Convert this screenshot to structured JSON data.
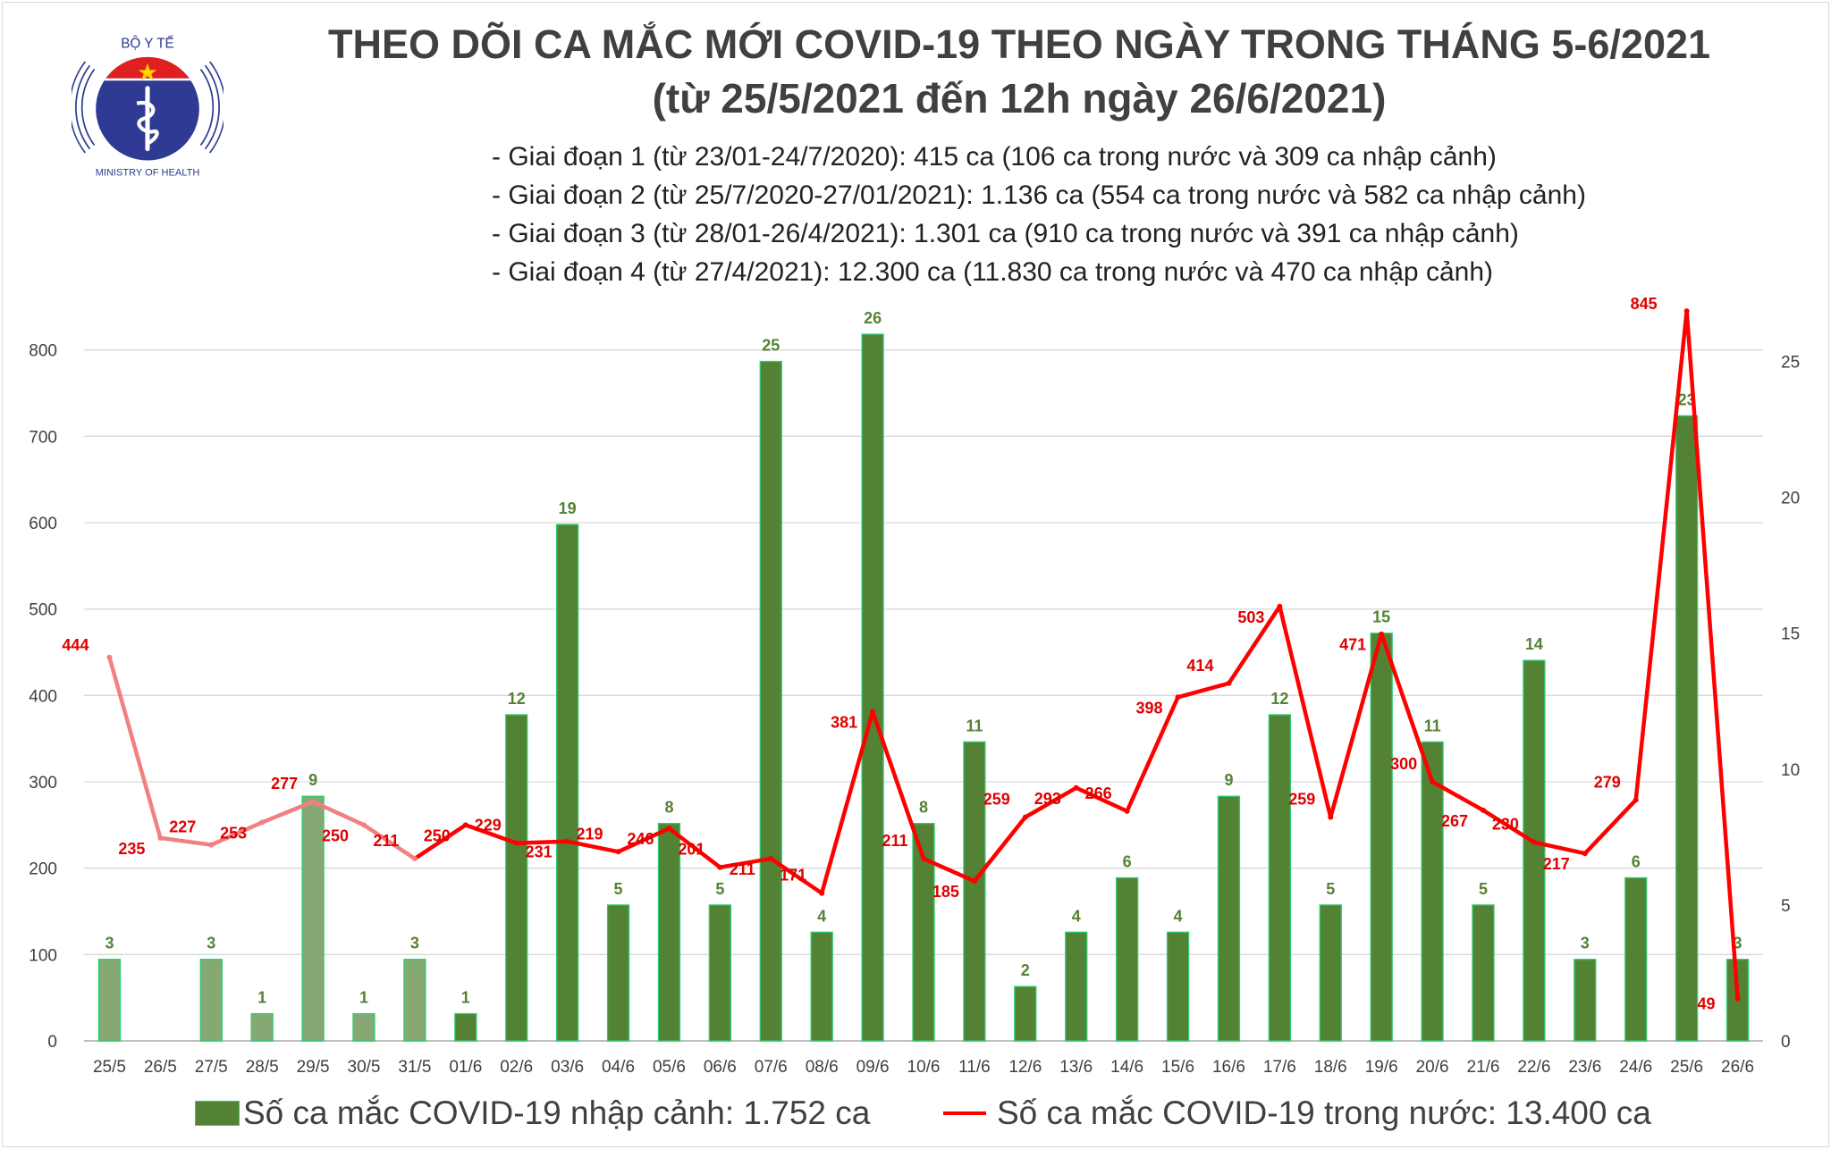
{
  "header": {
    "title": "THEO DÕI CA MẮC MỚI COVID-19 THEO NGÀY TRONG THÁNG 5-6/2021",
    "subtitle": "(từ 25/5/2021 đến 12h ngày 26/6/2021)",
    "phases": [
      "- Giai đoạn 1 (từ 23/01-24/7/2020): 415 ca (106 ca trong nước và 309 ca nhập cảnh)",
      "- Giai đoạn 2 (từ 25/7/2020-27/01/2021): 1.136 ca (554 ca trong nước và 582 ca nhập cảnh)",
      "- Giai đoạn 3 (từ 28/01-26/4/2021): 1.301 ca (910 ca trong nước và 391 ca nhập cảnh)",
      "- Giai đoạn 4 (từ 27/4/2021): 12.300 ca (11.830 ca trong nước và 470 ca nhập cảnh)"
    ]
  },
  "logo": {
    "top_text": "BỘ Y TẾ",
    "bottom_text": "MINISTRY OF HEALTH"
  },
  "legend": {
    "bar": "Số ca mắc COVID-19 nhập cảnh: 1.752 ca",
    "line": "Số ca mắc COVID-19 trong nước: 13.400 ca"
  },
  "chart_data": {
    "type": "bar+line",
    "categories": [
      "25/5",
      "26/5",
      "27/5",
      "28/5",
      "29/5",
      "30/5",
      "31/5",
      "01/6",
      "02/6",
      "03/6",
      "04/6",
      "05/6",
      "06/6",
      "07/6",
      "08/6",
      "09/6",
      "10/6",
      "11/6",
      "12/6",
      "13/6",
      "14/6",
      "15/6",
      "16/6",
      "17/6",
      "18/6",
      "19/6",
      "20/6",
      "21/6",
      "22/6",
      "23/6",
      "24/6",
      "25/6",
      "26/6"
    ],
    "series": [
      {
        "name": "Số ca mắc COVID-19 nhập cảnh",
        "type": "bar",
        "axis": "right",
        "values": [
          3,
          0,
          3,
          1,
          9,
          1,
          3,
          1,
          12,
          19,
          5,
          8,
          5,
          25,
          4,
          26,
          8,
          11,
          2,
          4,
          6,
          4,
          9,
          12,
          5,
          15,
          11,
          5,
          14,
          3,
          6,
          23,
          3
        ]
      },
      {
        "name": "Số ca mắc COVID-19 trong nước",
        "type": "line",
        "axis": "left",
        "values": [
          444,
          235,
          227,
          253,
          277,
          250,
          211,
          250,
          229,
          231,
          219,
          246,
          201,
          211,
          171,
          381,
          211,
          185,
          259,
          293,
          266,
          398,
          414,
          503,
          259,
          471,
          300,
          267,
          230,
          217,
          279,
          845,
          49
        ]
      }
    ],
    "left_axis": {
      "ylim": [
        0,
        900
      ],
      "ticks": [
        0,
        100,
        200,
        300,
        400,
        500,
        600,
        700,
        800
      ]
    },
    "right_axis": {
      "ylim": [
        0,
        28.6
      ],
      "ticks": [
        0,
        5,
        10,
        15,
        20,
        25
      ]
    },
    "faded_until_index": 6,
    "grid": true,
    "legend_position": "bottom",
    "colors": {
      "bar": "#548235",
      "bar_faded": "#86a872",
      "bar_edge": "#2ecc71",
      "line": "#ff0000",
      "line_faded": "#f28080",
      "bar_label": "#548235",
      "line_label": "#e00000"
    }
  }
}
